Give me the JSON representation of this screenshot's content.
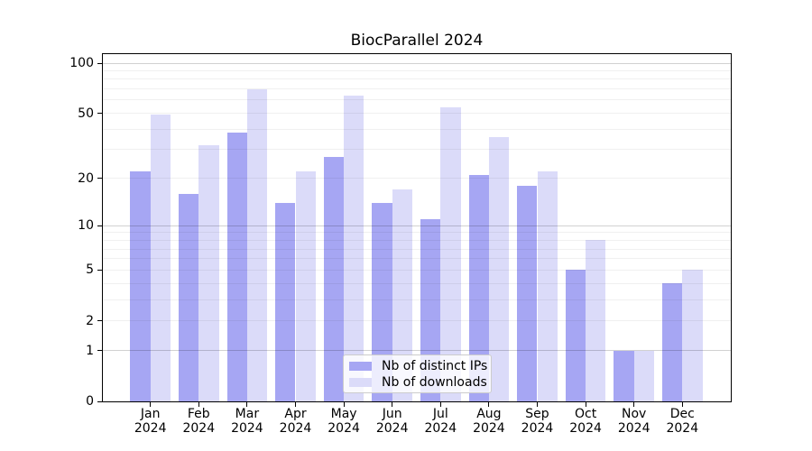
{
  "title": "BiocParallel 2024",
  "colors": {
    "ips_bar": "#a6a6f3",
    "downloads_bar": "#dbdbf9",
    "axis": "#000000",
    "legend_border": "#cccccc"
  },
  "chart_data": {
    "type": "bar",
    "title": "BiocParallel 2024",
    "xlabel": "",
    "ylabel": "",
    "categories": [
      {
        "month": "Jan",
        "year": "2024"
      },
      {
        "month": "Feb",
        "year": "2024"
      },
      {
        "month": "Mar",
        "year": "2024"
      },
      {
        "month": "Apr",
        "year": "2024"
      },
      {
        "month": "May",
        "year": "2024"
      },
      {
        "month": "Jun",
        "year": "2024"
      },
      {
        "month": "Jul",
        "year": "2024"
      },
      {
        "month": "Aug",
        "year": "2024"
      },
      {
        "month": "Sep",
        "year": "2024"
      },
      {
        "month": "Oct",
        "year": "2024"
      },
      {
        "month": "Nov",
        "year": "2024"
      },
      {
        "month": "Dec",
        "year": "2024"
      }
    ],
    "series": [
      {
        "name": "Nb of distinct IPs",
        "color": "#a6a6f3",
        "values": [
          22,
          16,
          38,
          14,
          27,
          14,
          11,
          21,
          18,
          5,
          1,
          4
        ]
      },
      {
        "name": "Nb of downloads",
        "color": "#dbdbf9",
        "values": [
          49,
          32,
          70,
          22,
          64,
          17,
          54,
          36,
          22,
          8,
          1,
          5
        ]
      }
    ],
    "y_axis": {
      "scale": "log1p",
      "ticks": [
        0,
        1,
        2,
        5,
        10,
        20,
        50,
        100
      ],
      "major_gridlines": [
        1,
        10,
        100
      ],
      "minor_gridlines": [
        2,
        3,
        4,
        5,
        6,
        7,
        8,
        9,
        20,
        30,
        40,
        50,
        60,
        70,
        80,
        90
      ],
      "range": [
        0,
        113
      ]
    },
    "grid": true,
    "legend_position": "lower center"
  }
}
